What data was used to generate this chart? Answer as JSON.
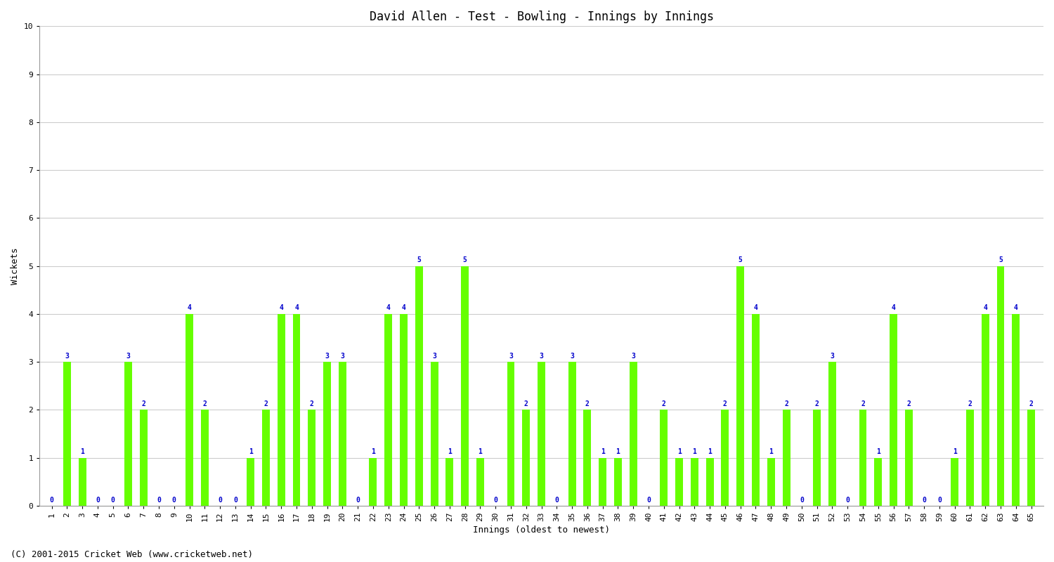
{
  "title": "David Allen - Test - Bowling - Innings by Innings",
  "xlabel": "Innings (oldest to newest)",
  "ylabel": "Wickets",
  "background_color": "#ffffff",
  "bar_color": "#66ff00",
  "label_color": "#0000cc",
  "ylim": [
    0,
    10
  ],
  "yticks": [
    0,
    1,
    2,
    3,
    4,
    5,
    6,
    7,
    8,
    9,
    10
  ],
  "innings": [
    1,
    2,
    3,
    4,
    5,
    6,
    7,
    8,
    9,
    10,
    11,
    12,
    13,
    14,
    15,
    16,
    17,
    18,
    19,
    20,
    21,
    22,
    23,
    24,
    25,
    26,
    27,
    28,
    29,
    30,
    31,
    32,
    33,
    34,
    35,
    36,
    37,
    38,
    39,
    40,
    41,
    42,
    43,
    44,
    45,
    46,
    47,
    48,
    49,
    50,
    51,
    52,
    53,
    54,
    55,
    56,
    57,
    58,
    59,
    60,
    61,
    62,
    63,
    64,
    65
  ],
  "wickets": [
    0,
    3,
    1,
    0,
    0,
    3,
    2,
    0,
    0,
    4,
    2,
    0,
    0,
    1,
    2,
    4,
    4,
    2,
    3,
    3,
    0,
    1,
    4,
    4,
    5,
    3,
    1,
    5,
    1,
    0,
    3,
    2,
    3,
    0,
    3,
    2,
    1,
    1,
    3,
    0,
    2,
    1,
    1,
    1,
    2,
    5,
    4,
    1,
    2,
    0,
    2,
    3,
    0,
    2,
    1,
    4,
    2,
    0,
    0,
    1,
    2,
    4,
    5,
    4,
    2
  ],
  "footer": "(C) 2001-2015 Cricket Web (www.cricketweb.net)",
  "title_fontsize": 12,
  "label_fontsize": 9,
  "tick_fontsize": 8,
  "footer_fontsize": 9,
  "grid_color": "#cccccc",
  "annotation_fontsize": 7,
  "bar_width": 0.5
}
